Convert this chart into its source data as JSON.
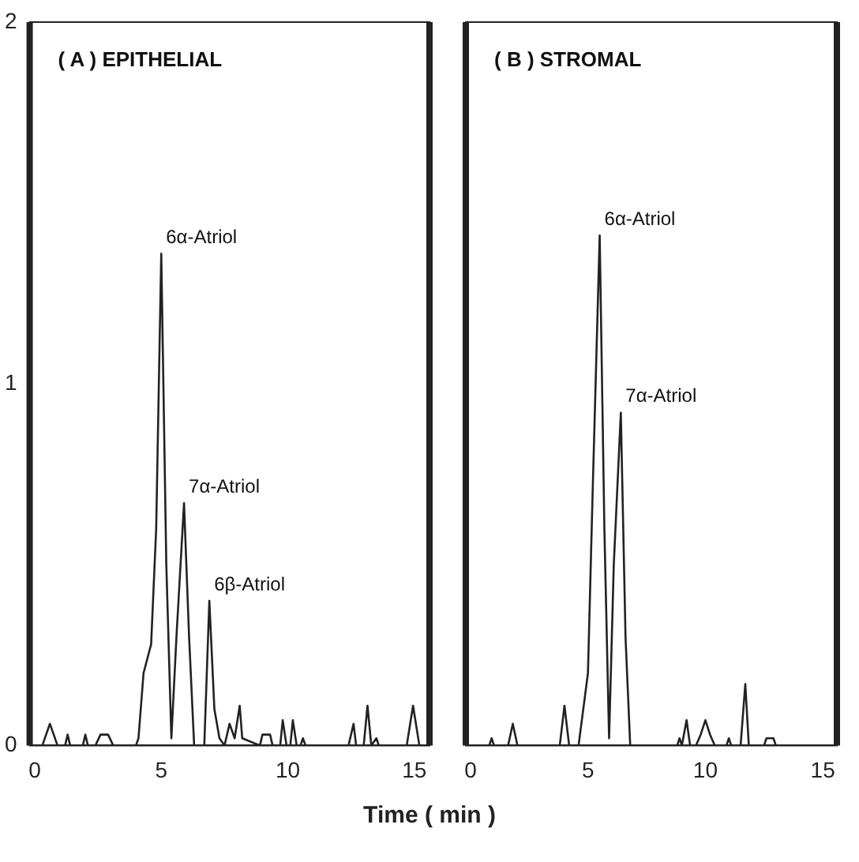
{
  "chart_data": [
    {
      "type": "line",
      "title": "( A ) EPITHELIAL",
      "xlabel": "Time ( min )",
      "xlim": [
        -0.2,
        15.6
      ],
      "xticks": [
        0,
        5,
        10,
        15
      ],
      "ylim": [
        0,
        2
      ],
      "yticks": [
        0,
        1,
        2
      ],
      "grid": false,
      "legend": false,
      "marker": "none",
      "line_style": "solid",
      "series": [
        {
          "color": "#222222",
          "x": [
            -0.1,
            0.3,
            0.6,
            0.9,
            1.2,
            1.3,
            1.4,
            1.9,
            2.0,
            2.1,
            2.4,
            2.6,
            2.9,
            3.1,
            4.0,
            4.1,
            4.3,
            4.6,
            4.8,
            5.0,
            5.2,
            5.4,
            5.6,
            5.9,
            6.1,
            6.3,
            6.7,
            6.9,
            7.1,
            7.3,
            7.5,
            7.7,
            7.9,
            8.1,
            8.2,
            8.9,
            9.0,
            9.3,
            9.4,
            9.7,
            9.8,
            9.95,
            10.1,
            10.2,
            10.35,
            10.5,
            10.6,
            10.7,
            12.4,
            12.6,
            12.7,
            13.0,
            13.15,
            13.3,
            13.5,
            13.6,
            14.7,
            14.95,
            15.2,
            15.4
          ],
          "values": [
            0,
            0,
            0.06,
            0,
            0,
            0.03,
            0,
            0,
            0.03,
            0,
            0,
            0.03,
            0.03,
            0,
            0,
            0.02,
            0.2,
            0.28,
            0.6,
            1.36,
            0.5,
            0.02,
            0.3,
            0.67,
            0.3,
            0,
            0,
            0.4,
            0.1,
            0.02,
            0,
            0.06,
            0.02,
            0.11,
            0.02,
            0,
            0.03,
            0.03,
            0,
            0,
            0.07,
            0,
            0,
            0.07,
            0,
            0,
            0.02,
            0,
            0,
            0.06,
            0,
            0,
            0.11,
            0,
            0.02,
            0,
            0,
            0.11,
            0,
            0
          ]
        }
      ],
      "annotations": [
        {
          "text": "6α-Atriol",
          "x": 5.0,
          "y": 1.36
        },
        {
          "text": "7α-Atriol",
          "x": 5.9,
          "y": 0.67
        },
        {
          "text": "6β-Atriol",
          "x": 6.9,
          "y": 0.4
        }
      ]
    },
    {
      "type": "line",
      "title": "( B ) STROMAL",
      "xlim": [
        -0.2,
        15.6
      ],
      "xticks": [
        0,
        5,
        10,
        15
      ],
      "ylim": [
        0,
        2
      ],
      "tick_labels": "x",
      "grid": false,
      "legend": false,
      "marker": "none",
      "line_style": "solid",
      "series": [
        {
          "color": "#222222",
          "x": [
            0,
            0.8,
            0.9,
            1.0,
            1.6,
            1.8,
            2.0,
            3.8,
            4.0,
            4.2,
            4.6,
            4.8,
            5.0,
            5.2,
            5.5,
            5.7,
            5.9,
            6.1,
            6.4,
            6.6,
            6.8,
            8.8,
            8.9,
            9.0,
            9.2,
            9.35,
            9.6,
            9.8,
            10.0,
            10.2,
            10.4,
            10.9,
            11.0,
            11.1,
            11.5,
            11.7,
            11.85,
            12.5,
            12.6,
            12.9,
            13.0,
            15.5
          ],
          "values": [
            0,
            0,
            0.02,
            0,
            0,
            0.06,
            0,
            0,
            0.11,
            0,
            0,
            0.1,
            0.2,
            0.7,
            1.41,
            0.6,
            0.02,
            0.5,
            0.92,
            0.3,
            0,
            0,
            0.02,
            0,
            0.07,
            0,
            0,
            0.03,
            0.07,
            0.03,
            0,
            0,
            0.02,
            0,
            0,
            0.17,
            0,
            0,
            0.02,
            0.02,
            0,
            0
          ]
        }
      ],
      "annotations": [
        {
          "text": "6α-Atriol",
          "x": 5.5,
          "y": 1.41
        },
        {
          "text": "7α-Atriol",
          "x": 6.4,
          "y": 0.92
        }
      ]
    }
  ]
}
